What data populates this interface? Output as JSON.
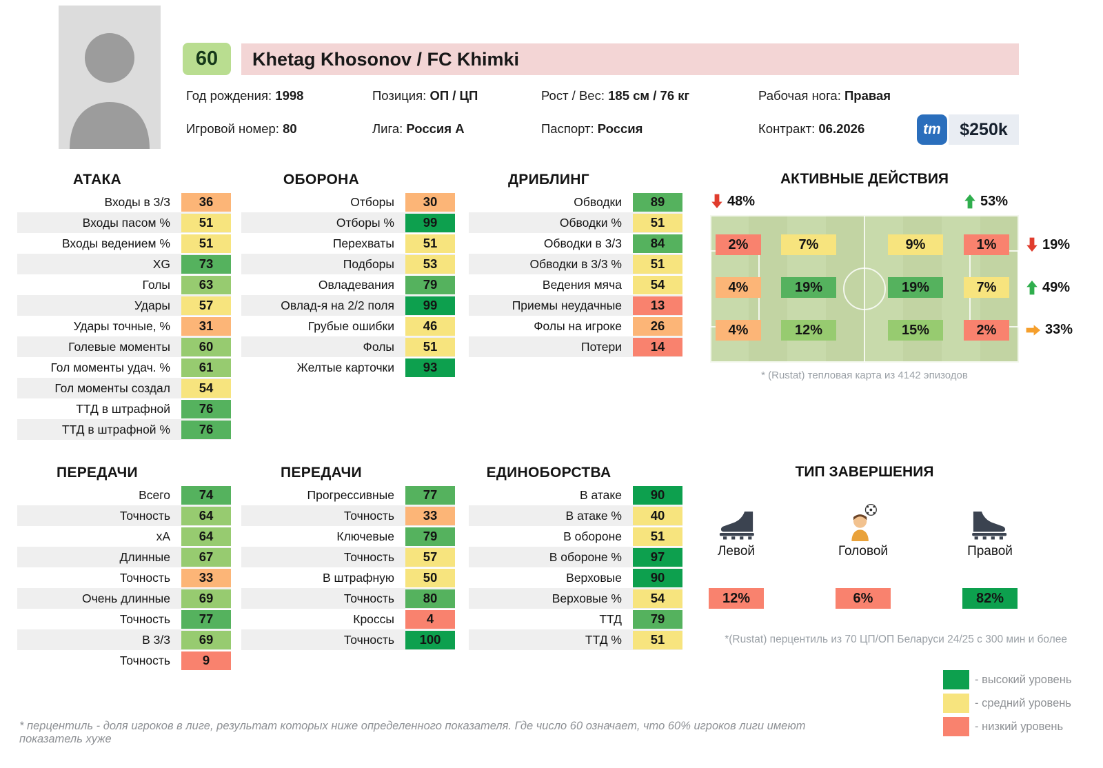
{
  "header": {
    "rating": "60",
    "title": "Khetag Khosonov / FC Khimki",
    "info": [
      {
        "label": "Год рождения:",
        "value": "1998"
      },
      {
        "label": "Позиция:",
        "value": "ОП / ЦП"
      },
      {
        "label": "Рост / Вес:",
        "value": "185 см / 76 кг"
      },
      {
        "label": "Рабочая нога:",
        "value": "Правая"
      },
      {
        "label": "Игровой номер:",
        "value": "80"
      },
      {
        "label": "Лига:",
        "value": "Россия А"
      },
      {
        "label": "Паспорт:",
        "value": "Россия"
      },
      {
        "label": "Контракт:",
        "value": "06.2026"
      }
    ],
    "tm_logo": "tm",
    "market_value": "$250k"
  },
  "palette": {
    "red": "#f9826e",
    "orange": "#fcb577",
    "yellow": "#f7e47e",
    "green_l": "#97cb70",
    "green": "#55b25e",
    "green_d": "#0da04e",
    "arrow_red": "#e03c2d",
    "arrow_green": "#2fae4d",
    "arrow_orange": "#f59f2c",
    "pink": "#f3d5d5",
    "badge_green": "#b9dd90",
    "pitch": "#c8daab",
    "zebra": "#efefef",
    "tm_blue": "#2a6ebc",
    "price_bg": "#e9edf3"
  },
  "chart_data": [
    {
      "type": "table",
      "title": "АТАКА",
      "categories": [
        "Входы в 3/3",
        "Входы пасом %",
        "Входы ведением %",
        "XG",
        "Голы",
        "Удары",
        "Удары точные, %",
        "Голевые моменты",
        "Гол моменты удач. %",
        "Гол моменты создал",
        "ТТД в штрафной",
        "ТТД в штрафной %"
      ],
      "values": [
        36,
        51,
        51,
        73,
        63,
        57,
        31,
        60,
        61,
        54,
        76,
        76
      ]
    },
    {
      "type": "table",
      "title": "ОБОРОНА",
      "categories": [
        "Отборы",
        "Отборы %",
        "Перехваты",
        "Подборы",
        "Овладевания",
        "Овлад-я на 2/2 поля",
        "Грубые ошибки",
        "Фолы",
        "Желтые карточки"
      ],
      "values": [
        30,
        99,
        51,
        53,
        79,
        99,
        46,
        51,
        93
      ]
    },
    {
      "type": "table",
      "title": "ДРИБЛИНГ",
      "categories": [
        "Обводки",
        "Обводки %",
        "Обводки в 3/3",
        "Обводки в 3/3 %",
        "Ведения мяча",
        "Приемы неудачные",
        "Фолы на игроке",
        "Потери"
      ],
      "values": [
        89,
        51,
        84,
        51,
        54,
        13,
        26,
        14
      ]
    },
    {
      "type": "table",
      "title": "ПЕРЕДАЧИ",
      "categories": [
        "Всего",
        "Точность",
        "хА",
        "Длинные",
        "Точность",
        "Очень длинные",
        "Точность",
        "В 3/3",
        "Точность"
      ],
      "values": [
        74,
        64,
        64,
        67,
        33,
        69,
        77,
        69,
        9
      ]
    },
    {
      "type": "table",
      "title": "ПЕРЕДАЧИ",
      "categories": [
        "Прогрессивные",
        "Точность",
        "Ключевые",
        "Точность",
        "В штрафную",
        "Точность",
        "Кроссы",
        "Точность"
      ],
      "values": [
        77,
        33,
        79,
        57,
        50,
        80,
        4,
        100
      ]
    },
    {
      "type": "table",
      "title": "ЕДИНОБОРСТВА",
      "categories": [
        "В атаке",
        "В атаке %",
        "В обороне",
        "В обороне %",
        "Верховые",
        "Верховые %",
        "ТТД",
        "ТТД %"
      ],
      "values": [
        90,
        40,
        51,
        97,
        90,
        54,
        79,
        51
      ]
    },
    {
      "type": "heatmap",
      "title": "АКТИВНЫЕ ДЕЙСТВИЯ",
      "top_left": {
        "dir": "down",
        "color": "red",
        "label": "48%"
      },
      "top_right": {
        "dir": "up",
        "color": "green",
        "label": "53%"
      },
      "tiles": [
        [
          {
            "label": "2%",
            "color": "red"
          },
          {
            "label": "7%",
            "color": "yellow"
          },
          {
            "label": "9%",
            "color": "yellow"
          },
          {
            "label": "1%",
            "color": "red"
          }
        ],
        [
          {
            "label": "4%",
            "color": "orange"
          },
          {
            "label": "19%",
            "color": "green"
          },
          {
            "label": "19%",
            "color": "green"
          },
          {
            "label": "7%",
            "color": "yellow"
          }
        ],
        [
          {
            "label": "4%",
            "color": "orange"
          },
          {
            "label": "12%",
            "color": "green_l"
          },
          {
            "label": "15%",
            "color": "green_l"
          },
          {
            "label": "2%",
            "color": "red"
          }
        ]
      ],
      "side": [
        {
          "dir": "down",
          "color": "red",
          "label": "19%"
        },
        {
          "dir": "up",
          "color": "green",
          "label": "49%"
        },
        {
          "dir": "right",
          "color": "orange",
          "label": "33%"
        }
      ],
      "note": "* (Rustat) тепловая карта из 4142 эпизодов"
    },
    {
      "type": "bar",
      "title": "ТИП ЗАВЕРШЕНИЯ",
      "categories": [
        "Левой",
        "Головой",
        "Правой"
      ],
      "values": [
        12,
        6,
        82
      ],
      "items": [
        {
          "icon": "boot-left",
          "label": "Левой",
          "value": "12%",
          "color": "red"
        },
        {
          "icon": "head",
          "label": "Головой",
          "value": "6%",
          "color": "red"
        },
        {
          "icon": "boot-right",
          "label": "Правой",
          "value": "82%",
          "color": "green_d"
        }
      ],
      "note": "*(Rustat) перцентиль из 70 ЦП/ОП Беларуси 24/25 с 300 мин и более"
    }
  ],
  "legend": {
    "items": [
      {
        "color": "green_d",
        "label": "- высокий уровень"
      },
      {
        "color": "yellow",
        "label": "- средний уровень"
      },
      {
        "color": "red",
        "label": "- низкий уровень"
      }
    ]
  },
  "footnote": "* перцентиль - доля игроков в лиге, результат которых ниже определенного показателя. Где число 60 означает, что 60% игроков лиги имеют показатель хуже"
}
